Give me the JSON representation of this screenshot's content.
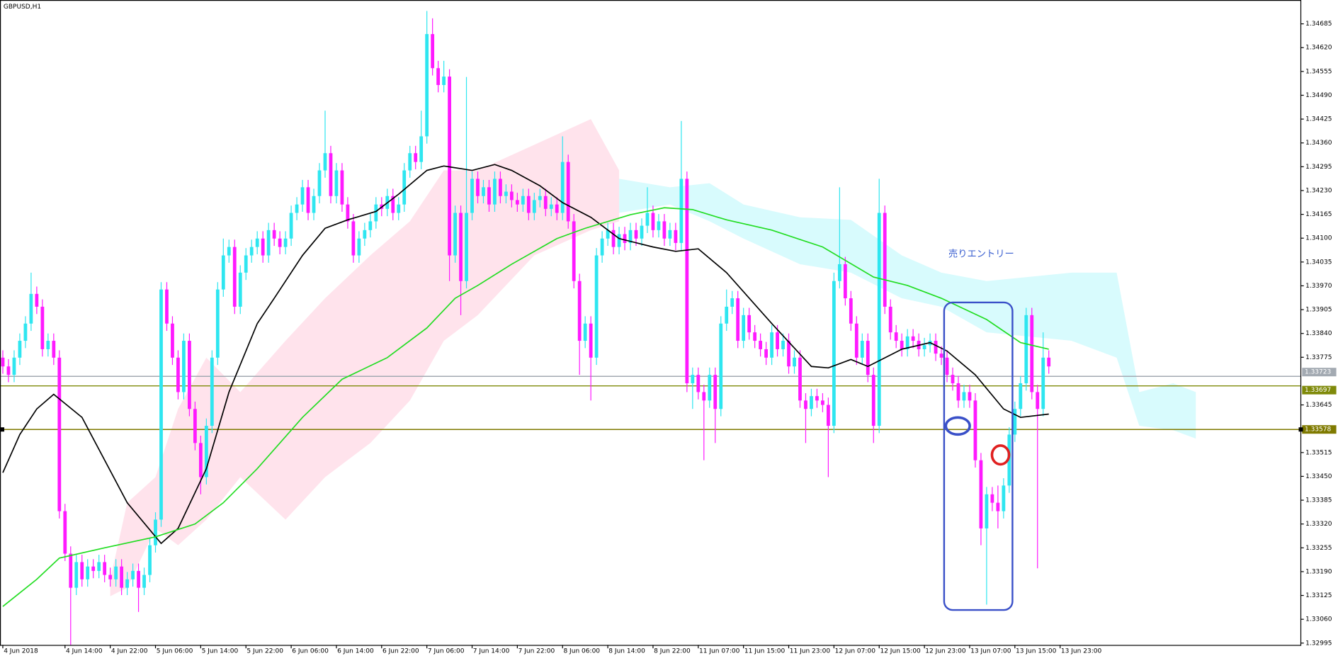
{
  "chart_data": {
    "type": "candlestick",
    "title": "GBPUSD,H1",
    "annotation": "売りエントリー",
    "up_color": "#2ee6f0",
    "down_color": "#ff1aff",
    "xlim": [
      -0.5,
      229.5
    ],
    "xticks": [
      {
        "value": 0,
        "label": "4 Jun 2018"
      },
      {
        "value": 11,
        "label": "4 Jun 14:00"
      },
      {
        "value": 19,
        "label": "4 Jun 22:00"
      },
      {
        "value": 27,
        "label": "5 Jun 06:00"
      },
      {
        "value": 35,
        "label": "5 Jun 14:00"
      },
      {
        "value": 43,
        "label": "5 Jun 22:00"
      },
      {
        "value": 51,
        "label": "6 Jun 06:00"
      },
      {
        "value": 59,
        "label": "6 Jun 14:00"
      },
      {
        "value": 67,
        "label": "6 Jun 22:00"
      },
      {
        "value": 75,
        "label": "7 Jun 06:00"
      },
      {
        "value": 83,
        "label": "7 Jun 14:00"
      },
      {
        "value": 91,
        "label": "7 Jun 22:00"
      },
      {
        "value": 99,
        "label": "8 Jun 06:00"
      },
      {
        "value": 107,
        "label": "8 Jun 14:00"
      },
      {
        "value": 115,
        "label": "8 Jun 22:00"
      },
      {
        "value": 123,
        "label": "11 Jun 07:00"
      },
      {
        "value": 131,
        "label": "11 Jun 15:00"
      },
      {
        "value": 139,
        "label": "11 Jun 23:00"
      },
      {
        "value": 147,
        "label": "12 Jun 07:00"
      },
      {
        "value": 155,
        "label": "12 Jun 15:00"
      },
      {
        "value": 163,
        "label": "12 Jun 23:00"
      },
      {
        "value": 171,
        "label": "13 Jun 07:00"
      },
      {
        "value": 179,
        "label": "13 Jun 15:00"
      },
      {
        "value": 187,
        "label": "13 Jun 23:00"
      }
    ],
    "ylim": [
      1.3299,
      1.3475
    ],
    "yticks": [
      1.34685,
      {
        "value": 1.3462,
        "label": "1.34620"
      },
      1.34555,
      {
        "value": 1.3449,
        "label": "1.34490"
      },
      1.34425,
      {
        "value": 1.3436,
        "label": "1.34360"
      },
      1.34295,
      {
        "value": 1.3423,
        "label": "1.34230"
      },
      1.34165,
      {
        "value": 1.341,
        "label": "1.34100"
      },
      1.34035,
      {
        "value": 1.3397,
        "label": "1.33970"
      },
      1.33905,
      {
        "value": 1.3384,
        "label": "1.33840"
      },
      1.33775,
      1.33645,
      1.33515,
      {
        "value": 1.3345,
        "label": "1.33450"
      },
      1.33385,
      {
        "value": 1.3332,
        "label": "1.33320"
      },
      1.33255,
      {
        "value": 1.3319,
        "label": "1.33190"
      },
      1.33125,
      {
        "value": 1.3306,
        "label": "1.33060"
      },
      1.32995
    ],
    "open": [
      1.33774,
      1.3375,
      1.33727,
      1.33774,
      1.3382,
      1.33867,
      1.33948,
      1.33913,
      1.33797,
      1.3382,
      1.33774,
      1.33355,
      1.33239,
      1.33146,
      1.33216,
      1.33169,
      1.33204,
      1.33192,
      1.33216,
      1.33181,
      1.33169,
      1.33204,
      1.33146,
      1.33169,
      1.33192,
      1.33146,
      1.33181,
      1.33262,
      1.33332,
      1.3396,
      1.33867,
      1.33774,
      1.3368,
      1.3382,
      1.33634,
      1.33541,
      1.33448,
      1.33588,
      1.33774,
      1.3396,
      1.34053,
      1.34076,
      1.33913,
      1.34006,
      1.34053,
      1.34076,
      1.34099,
      1.34053,
      1.34122,
      1.34099,
      1.34076,
      1.34099,
      1.34169,
      1.34192,
      1.34239,
      1.34169,
      1.34215,
      1.34285,
      1.34332,
      1.34215,
      1.34285,
      1.34192,
      1.34146,
      1.34053,
      1.34099,
      1.34122,
      1.34146,
      1.34192,
      1.3418,
      1.34215,
      1.34169,
      1.34192,
      1.34285,
      1.34332,
      1.34308,
      1.34378,
      1.34657,
      1.34564,
      1.34518,
      1.34541,
      1.34053,
      1.34169,
      1.33983,
      1.34169,
      1.34262,
      1.34215,
      1.34239,
      1.34192,
      1.34262,
      1.34215,
      1.34227,
      1.34204,
      1.34192,
      1.34215,
      1.34169,
      1.34204,
      1.34215,
      1.3418,
      1.34192,
      1.34169,
      1.34308,
      1.34146,
      1.33983,
      1.3382,
      1.33867,
      1.33774,
      1.34053,
      1.34099,
      1.34122,
      1.34076,
      1.34111,
      1.34087,
      1.34122,
      1.34099,
      1.34134,
      1.34169,
      1.34122,
      1.34146,
      1.34099,
      1.34122,
      1.34087,
      1.34262,
      1.33704,
      1.33727,
      1.3368,
      1.33657,
      1.33727,
      1.33634,
      1.33867,
      1.33913,
      1.33936,
      1.3382,
      1.3389,
      1.33843,
      1.3382,
      1.33797,
      1.33774,
      1.33843,
      1.33797,
      1.3382,
      1.3375,
      1.33774,
      1.33657,
      1.33634,
      1.33669,
      1.33657,
      1.33645,
      1.33588,
      1.33983,
      1.34029,
      1.33936,
      1.33867,
      1.33774,
      1.3382,
      1.33727,
      1.33588,
      1.34169,
      1.33913,
      1.33843,
      1.3382,
      1.33797,
      1.33832,
      1.3382,
      1.33797,
      1.33808,
      1.3382,
      1.33785,
      1.33774,
      1.33727,
      1.33704,
      1.33657,
      1.3368,
      1.33657,
      1.33494,
      1.33308,
      1.33401,
      1.33378,
      1.33355,
      1.33425,
      1.33564,
      1.33634,
      1.33704,
      1.3389,
      1.3368,
      1.33634,
      1.33774
    ],
    "high": [
      1.33794,
      1.3377,
      1.33794,
      1.3384,
      1.33887,
      1.34006,
      1.33968,
      1.33933,
      1.3384,
      1.3384,
      1.33794,
      1.33375,
      1.33259,
      1.33236,
      1.33236,
      1.33224,
      1.33224,
      1.33236,
      1.33236,
      1.33201,
      1.33224,
      1.33224,
      1.33189,
      1.33212,
      1.33212,
      1.33201,
      1.33282,
      1.33352,
      1.3398,
      1.3398,
      1.33887,
      1.33794,
      1.3384,
      1.3384,
      1.33654,
      1.33561,
      1.33608,
      1.33794,
      1.3398,
      1.34099,
      1.34096,
      1.34096,
      1.34026,
      1.34073,
      1.34096,
      1.34119,
      1.34119,
      1.34142,
      1.34142,
      1.34119,
      1.34119,
      1.34189,
      1.34212,
      1.34259,
      1.34259,
      1.34235,
      1.34305,
      1.34448,
      1.34352,
      1.34305,
      1.34305,
      1.34212,
      1.34166,
      1.34119,
      1.34142,
      1.34166,
      1.34212,
      1.34212,
      1.34235,
      1.34235,
      1.34212,
      1.34305,
      1.34352,
      1.34352,
      1.34448,
      1.3472,
      1.347,
      1.34584,
      1.34584,
      1.34561,
      1.34189,
      1.34189,
      1.3454,
      1.34282,
      1.34282,
      1.34259,
      1.34259,
      1.34282,
      1.34282,
      1.34247,
      1.34247,
      1.34224,
      1.34235,
      1.34235,
      1.34224,
      1.34235,
      1.34235,
      1.34212,
      1.34212,
      1.34378,
      1.34328,
      1.34166,
      1.34003,
      1.33887,
      1.33887,
      1.34073,
      1.34119,
      1.34142,
      1.34142,
      1.34131,
      1.34131,
      1.34142,
      1.34142,
      1.34154,
      1.34239,
      1.34189,
      1.34166,
      1.34166,
      1.34142,
      1.34142,
      1.3442,
      1.34282,
      1.33747,
      1.33747,
      1.337,
      1.33747,
      1.33747,
      1.33887,
      1.3396,
      1.33956,
      1.33956,
      1.3391,
      1.3391,
      1.33863,
      1.3384,
      1.33817,
      1.33863,
      1.33863,
      1.3384,
      1.3384,
      1.33794,
      1.33794,
      1.33677,
      1.33689,
      1.33689,
      1.33677,
      1.33665,
      1.34006,
      1.34239,
      1.34049,
      1.33956,
      1.33887,
      1.3384,
      1.3384,
      1.33747,
      1.34262,
      1.34189,
      1.33933,
      1.33863,
      1.3384,
      1.33852,
      1.33852,
      1.3384,
      1.33828,
      1.3384,
      1.3384,
      1.33805,
      1.33794,
      1.33747,
      1.33724,
      1.337,
      1.337,
      1.33677,
      1.33514,
      1.33421,
      1.33421,
      1.33425,
      1.33445,
      1.33584,
      1.33654,
      1.33724,
      1.3391,
      1.3391,
      1.337,
      1.33843,
      1.33794
    ],
    "low": [
      1.3373,
      1.33707,
      1.33707,
      1.33754,
      1.338,
      1.33847,
      1.33893,
      1.33777,
      1.33777,
      1.33754,
      1.33335,
      1.33219,
      1.3299,
      1.33126,
      1.33149,
      1.33149,
      1.33172,
      1.33172,
      1.33161,
      1.33149,
      1.33149,
      1.33126,
      1.33126,
      1.33149,
      1.3308,
      1.33126,
      1.33161,
      1.33242,
      1.33312,
      1.33847,
      1.33754,
      1.3366,
      1.3366,
      1.33614,
      1.33521,
      1.33401,
      1.33428,
      1.33568,
      1.33754,
      1.3394,
      1.34033,
      1.33893,
      1.33893,
      1.33986,
      1.34033,
      1.34056,
      1.34033,
      1.34033,
      1.34079,
      1.34056,
      1.34056,
      1.34079,
      1.34149,
      1.34172,
      1.34149,
      1.34149,
      1.34195,
      1.34265,
      1.34195,
      1.34195,
      1.34172,
      1.34126,
      1.34033,
      1.34033,
      1.34079,
      1.34102,
      1.34126,
      1.3416,
      1.3416,
      1.34149,
      1.34149,
      1.34172,
      1.34265,
      1.34288,
      1.34288,
      1.34358,
      1.34544,
      1.34498,
      1.34498,
      1.33983,
      1.34033,
      1.3389,
      1.33963,
      1.34149,
      1.34195,
      1.34195,
      1.34172,
      1.34172,
      1.34195,
      1.34195,
      1.34184,
      1.34172,
      1.34172,
      1.34149,
      1.34149,
      1.34184,
      1.3416,
      1.3416,
      1.34149,
      1.34149,
      1.34126,
      1.33963,
      1.33727,
      1.338,
      1.33657,
      1.33754,
      1.34033,
      1.34079,
      1.34056,
      1.34056,
      1.34067,
      1.34067,
      1.34079,
      1.34079,
      1.34114,
      1.34102,
      1.34102,
      1.34079,
      1.34079,
      1.34067,
      1.34067,
      1.3368,
      1.33634,
      1.3366,
      1.33494,
      1.33637,
      1.33541,
      1.33614,
      1.33847,
      1.33893,
      1.338,
      1.338,
      1.33823,
      1.338,
      1.33777,
      1.33754,
      1.33754,
      1.33777,
      1.33777,
      1.3373,
      1.3373,
      1.33637,
      1.33541,
      1.33614,
      1.33637,
      1.33625,
      1.33448,
      1.33568,
      1.33963,
      1.33916,
      1.33847,
      1.33754,
      1.33754,
      1.33707,
      1.33541,
      1.33568,
      1.33893,
      1.33823,
      1.338,
      1.33777,
      1.33777,
      1.338,
      1.33777,
      1.33777,
      1.33788,
      1.33765,
      1.33754,
      1.33707,
      1.33684,
      1.33637,
      1.33637,
      1.33637,
      1.33474,
      1.33262,
      1.331,
      1.33355,
      1.33308,
      1.33335,
      1.33405,
      1.33544,
      1.33614,
      1.33684,
      1.3366,
      1.33199,
      1.33614,
      1.3373
    ],
    "close": [
      1.3375,
      1.33727,
      1.33774,
      1.3382,
      1.33867,
      1.33948,
      1.33913,
      1.33797,
      1.3382,
      1.33774,
      1.33355,
      1.33239,
      1.33146,
      1.33216,
      1.33169,
      1.33204,
      1.33192,
      1.33216,
      1.33181,
      1.33169,
      1.33204,
      1.33146,
      1.33169,
      1.33192,
      1.33146,
      1.33181,
      1.33262,
      1.33332,
      1.3396,
      1.33867,
      1.33774,
      1.3368,
      1.3382,
      1.33634,
      1.33541,
      1.33448,
      1.33588,
      1.33774,
      1.3396,
      1.34053,
      1.34076,
      1.33913,
      1.34006,
      1.34053,
      1.34076,
      1.34099,
      1.34053,
      1.34122,
      1.34099,
      1.34076,
      1.34099,
      1.34169,
      1.34192,
      1.34239,
      1.34169,
      1.34215,
      1.34285,
      1.34332,
      1.34215,
      1.34285,
      1.34192,
      1.34146,
      1.34053,
      1.34099,
      1.34122,
      1.34146,
      1.34192,
      1.3418,
      1.34215,
      1.34169,
      1.34192,
      1.34285,
      1.34332,
      1.34308,
      1.34378,
      1.34657,
      1.34564,
      1.34518,
      1.34541,
      1.34053,
      1.34169,
      1.33983,
      1.34169,
      1.34262,
      1.34215,
      1.34239,
      1.34192,
      1.34262,
      1.34215,
      1.34227,
      1.34204,
      1.34192,
      1.34215,
      1.34169,
      1.34204,
      1.34215,
      1.3418,
      1.34192,
      1.34169,
      1.34308,
      1.34146,
      1.33983,
      1.3382,
      1.33867,
      1.33774,
      1.34053,
      1.34099,
      1.34122,
      1.34076,
      1.34111,
      1.34087,
      1.34122,
      1.34099,
      1.34134,
      1.34169,
      1.34122,
      1.34146,
      1.34099,
      1.34122,
      1.34087,
      1.34262,
      1.33704,
      1.33727,
      1.3368,
      1.33657,
      1.33727,
      1.33634,
      1.33867,
      1.33913,
      1.33936,
      1.3382,
      1.3389,
      1.33843,
      1.3382,
      1.33797,
      1.33774,
      1.33843,
      1.33797,
      1.3382,
      1.3375,
      1.33774,
      1.33657,
      1.33634,
      1.33669,
      1.33657,
      1.33645,
      1.33588,
      1.33983,
      1.34029,
      1.33936,
      1.33867,
      1.33774,
      1.3382,
      1.33727,
      1.33588,
      1.34169,
      1.33913,
      1.33843,
      1.3382,
      1.33797,
      1.33832,
      1.3382,
      1.33797,
      1.33808,
      1.3382,
      1.33785,
      1.33774,
      1.33727,
      1.33704,
      1.33657,
      1.3368,
      1.33657,
      1.33494,
      1.33308,
      1.33401,
      1.33378,
      1.33355,
      1.33425,
      1.33564,
      1.33634,
      1.33704,
      1.3389,
      1.3368,
      1.33634,
      1.33774,
      1.3375
    ],
    "clouds": [
      {
        "color": "#ffe3ec",
        "x": [
          19,
          22,
          27,
          31,
          36,
          42,
          50,
          57,
          65,
          72,
          78,
          84,
          94,
          104,
          109
        ],
        "upper": [
          1.33169,
          1.33378,
          1.33448,
          1.33634,
          1.33774,
          1.3368,
          1.3382,
          1.33936,
          1.34053,
          1.34146,
          1.34285,
          1.34285,
          1.34355,
          1.34425,
          1.34285
        ],
        "lower": [
          1.33123,
          1.33146,
          1.33308,
          1.33262,
          1.33332,
          1.33448,
          1.33332,
          1.33448,
          1.33541,
          1.33657,
          1.3382,
          1.3389,
          1.34053,
          1.34122,
          1.34146
        ]
      },
      {
        "color": "#d8fbfd",
        "x": [
          109,
          118,
          125,
          131,
          141,
          150,
          159,
          166,
          174,
          189,
          197,
          201,
          207,
          211
        ],
        "upper": [
          1.34262,
          1.34239,
          1.3425,
          1.34192,
          1.34157,
          1.3415,
          1.34053,
          1.34006,
          1.33983,
          1.34006,
          1.34006,
          1.3368,
          1.33704,
          1.3368
        ],
        "lower": [
          1.34169,
          1.34192,
          1.34146,
          1.34099,
          1.34029,
          1.34006,
          1.33936,
          1.33913,
          1.33843,
          1.3382,
          1.33774,
          1.33588,
          1.33576,
          1.33553
        ]
      }
    ],
    "lines": [
      {
        "color": "#000000",
        "x": [
          0,
          3,
          6,
          9,
          14,
          22,
          28,
          31,
          36,
          40,
          45,
          48,
          53,
          57,
          61,
          66,
          70,
          75,
          78,
          83,
          87,
          90,
          95,
          99,
          104,
          109,
          115,
          119,
          123,
          128,
          136,
          143,
          146,
          150,
          153,
          159,
          164,
          167,
          172,
          177,
          180,
          185
        ],
        "values": [
          1.3346,
          1.33564,
          1.33634,
          1.33674,
          1.33611,
          1.33378,
          1.33267,
          1.33308,
          1.33471,
          1.3368,
          1.33867,
          1.33936,
          1.34053,
          1.34127,
          1.3415,
          1.34173,
          1.3422,
          1.34285,
          1.34297,
          1.34285,
          1.34301,
          1.34285,
          1.34243,
          1.34197,
          1.34157,
          1.34099,
          1.34076,
          1.34064,
          1.34071,
          1.34006,
          1.33867,
          1.3375,
          1.33746,
          1.33769,
          1.3375,
          1.33797,
          1.33815,
          1.33792,
          1.33727,
          1.33634,
          1.33611,
          1.3362
        ]
      },
      {
        "color": "#22dd22",
        "x": [
          0,
          6,
          10,
          18,
          27,
          34,
          39,
          45,
          53,
          60,
          68,
          75,
          80,
          84,
          90,
          98,
          103,
          111,
          117,
          122,
          128,
          136,
          145,
          154,
          160,
          166,
          174,
          180,
          185
        ],
        "values": [
          1.33095,
          1.33169,
          1.33227,
          1.33255,
          1.33285,
          1.3332,
          1.33378,
          1.33471,
          1.33611,
          1.33715,
          1.33774,
          1.33855,
          1.33936,
          1.33971,
          1.34029,
          1.34099,
          1.34127,
          1.34164,
          1.34183,
          1.34178,
          1.3415,
          1.34122,
          1.34076,
          1.33994,
          1.33971,
          1.33936,
          1.33878,
          1.33815,
          1.33797
        ]
      }
    ],
    "hlines": [
      {
        "value": 1.33723,
        "color": "#a3aab2"
      },
      {
        "value": 1.33697,
        "color": "#7f8a0a"
      },
      {
        "value": 1.33578,
        "color": "#7f7a00"
      }
    ]
  }
}
